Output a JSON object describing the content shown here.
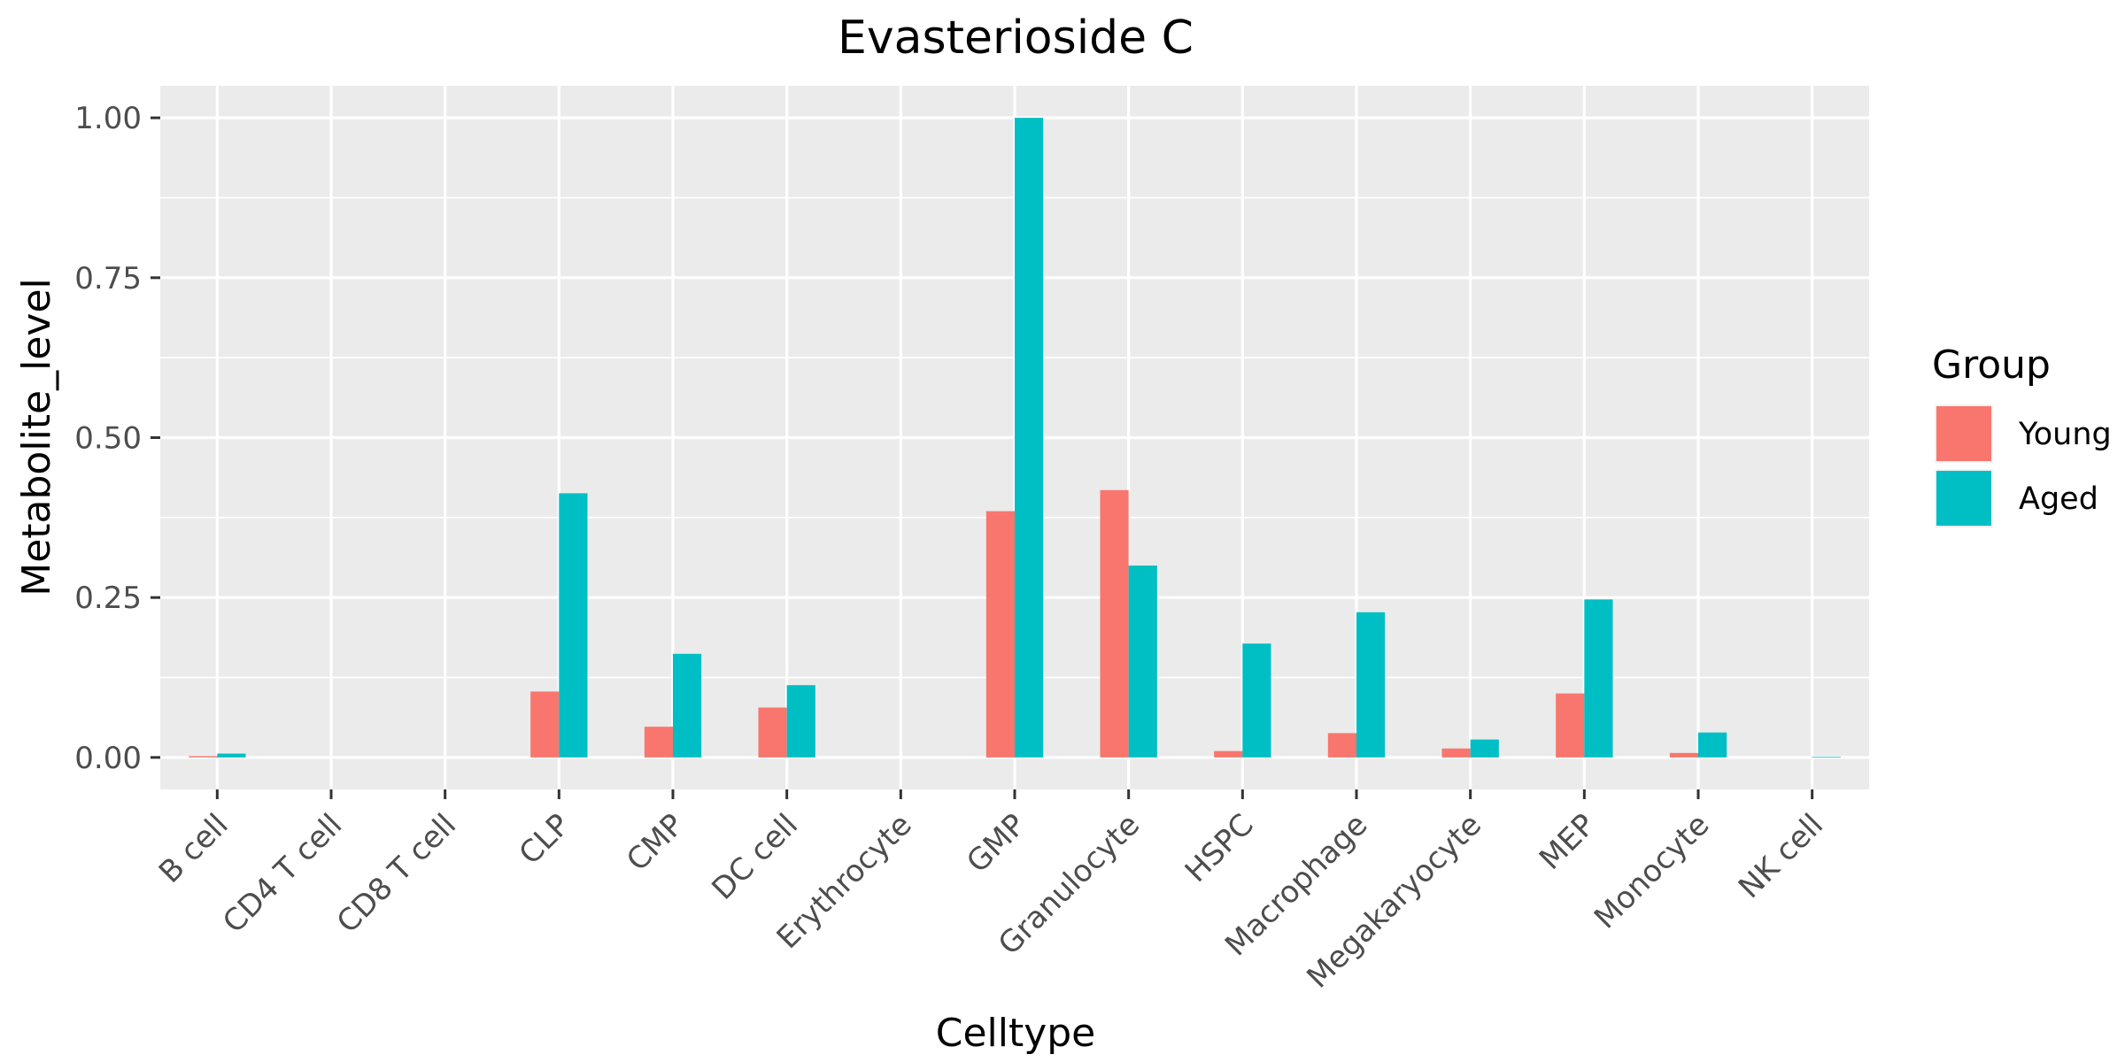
{
  "chart_data": {
    "type": "bar",
    "title": "Evasterioside C",
    "xlabel": "Celltype",
    "ylabel": "Metabolite_level",
    "ylim": [
      -0.05,
      1.05
    ],
    "yticks": [
      "0.00",
      "0.25",
      "0.50",
      "0.75",
      "1.00"
    ],
    "grid": true,
    "legend_position": "right",
    "legend_title": "Group",
    "categories": [
      "B cell",
      "CD4 T cell",
      "CD8 T cell",
      "CLP",
      "CMP",
      "DC cell",
      "Erythrocyte",
      "GMP",
      "Granulocyte",
      "HSPC",
      "Macrophage",
      "Megakaryocyte",
      "MEP",
      "Monocyte",
      "NK cell"
    ],
    "series": [
      {
        "name": "Young",
        "color": "#F8766D",
        "values": [
          0.002,
          0,
          0,
          0.103,
          0.048,
          0.078,
          0,
          0.385,
          0.418,
          0.01,
          0.038,
          0.014,
          0.1,
          0.007,
          0
        ]
      },
      {
        "name": "Aged",
        "color": "#00BFC4",
        "values": [
          0.006,
          0,
          0,
          0.413,
          0.162,
          0.113,
          0,
          1.0,
          0.3,
          0.178,
          0.227,
          0.028,
          0.247,
          0.039,
          0.001
        ]
      }
    ]
  }
}
